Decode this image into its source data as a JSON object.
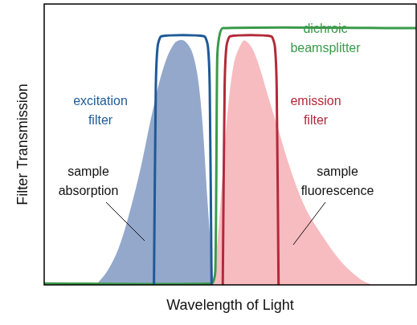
{
  "chart_data": {
    "type": "line",
    "x_label": "Wavelength of Light",
    "y_label": "Filter Transmission",
    "xlim": [
      0,
      100
    ],
    "ylim": [
      0,
      100
    ],
    "grid": false,
    "tick_labels": false,
    "series": [
      {
        "name": "sample absorption",
        "type": "area",
        "color": "#93a8cb",
        "x": [
          14,
          17,
          20,
          23,
          26,
          29,
          32,
          35,
          37.5,
          40,
          42,
          44,
          45.5
        ],
        "values": [
          0,
          5,
          13,
          26,
          42,
          61,
          77,
          86,
          87,
          82,
          66,
          28,
          0
        ]
      },
      {
        "name": "sample fluorescence",
        "type": "area",
        "color": "#f7bcc0",
        "x": [
          45.5,
          47,
          49,
          51,
          53,
          54,
          56,
          58,
          60,
          63,
          66,
          70,
          75,
          80,
          85,
          88
        ],
        "values": [
          0,
          22,
          57,
          79,
          86,
          87,
          84,
          77,
          68,
          55,
          42,
          28,
          17,
          8,
          2,
          0
        ]
      },
      {
        "name": "excitation filter",
        "type": "line",
        "color": "#1f5a96",
        "x": [
          29.5,
          30,
          30.5,
          31.5,
          43,
          44,
          44.5,
          45
        ],
        "values": [
          0,
          70,
          85,
          88.5,
          88.5,
          85,
          70,
          0
        ]
      },
      {
        "name": "emission filter",
        "type": "line",
        "color": "#b22a3a",
        "x": [
          48,
          48.5,
          49,
          50,
          61,
          62,
          62.5,
          63
        ],
        "values": [
          0,
          70,
          85,
          88.5,
          88.5,
          85,
          70,
          0
        ]
      },
      {
        "name": "dichroic beamsplitter",
        "type": "line",
        "color": "#3a9a4a",
        "x": [
          0,
          45,
          46,
          46.5,
          47,
          48,
          100
        ],
        "values": [
          0.5,
          0.5,
          5,
          80,
          88,
          91.4,
          91.4
        ]
      }
    ]
  }
}
